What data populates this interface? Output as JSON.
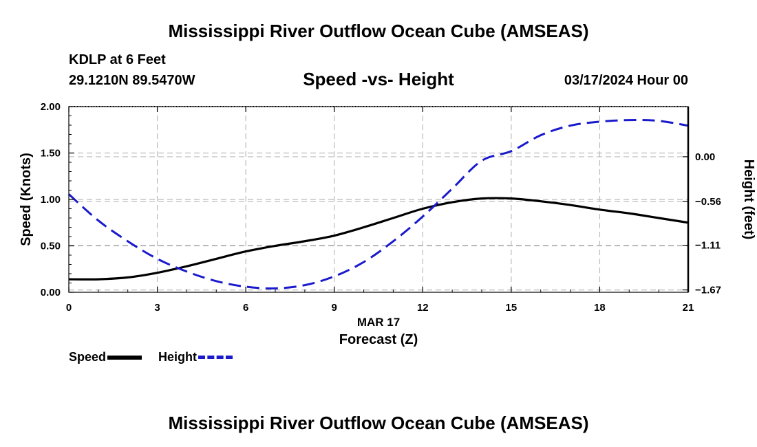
{
  "header": {
    "title": "Mississippi River Outflow Ocean Cube (AMSEAS)",
    "station": "KDLP at 6 Feet",
    "coords": "29.1210N  89.5470W",
    "subtitle": "Speed -vs- Height",
    "datetime": "03/17/2024 Hour 00"
  },
  "footer": {
    "title": "Mississippi River Outflow Ocean Cube (AMSEAS)"
  },
  "legend": {
    "speed_label": "Speed",
    "height_label": "Height"
  },
  "colors": {
    "speed": "#000000",
    "height": "#1a1acc",
    "grid": "#bbbbbb"
  },
  "chart_data": {
    "type": "line",
    "title": "Speed -vs- Height",
    "xlabel": "Forecast (Z)",
    "xlabel_date": "MAR 17",
    "ylabel": "Speed (Knots)",
    "y2label": "Height (feet)",
    "xlim": [
      0,
      21
    ],
    "ylim": [
      0,
      2
    ],
    "y2lim": [
      -1.6994,
      0.6288
    ],
    "x_ticks": [
      0,
      3,
      6,
      9,
      12,
      15,
      18,
      21
    ],
    "x_tick_labels": [
      "0",
      "3",
      "6",
      "9",
      "12",
      "15",
      "18",
      "21"
    ],
    "y_ticks": [
      0,
      0.5,
      1.0,
      1.5,
      2.0
    ],
    "y_tick_labels": [
      "0.00",
      "0.50",
      "1.00",
      "1.50",
      "2.00"
    ],
    "y2_ticks": [
      0.0,
      -0.56,
      -1.11,
      -1.67
    ],
    "y2_tick_labels": [
      "0.00",
      "−0.56",
      "−1.11",
      "−1.67"
    ],
    "grid": true,
    "series": [
      {
        "name": "Speed",
        "axis": "left",
        "style": "solid",
        "x": [
          0,
          1,
          2,
          3,
          4,
          5,
          6,
          7,
          8,
          9,
          10,
          11,
          12,
          13,
          14,
          15,
          16,
          17,
          18,
          19,
          20,
          21
        ],
        "values": [
          0.14,
          0.14,
          0.16,
          0.21,
          0.28,
          0.36,
          0.44,
          0.5,
          0.55,
          0.61,
          0.7,
          0.8,
          0.9,
          0.97,
          1.01,
          1.01,
          0.98,
          0.94,
          0.89,
          0.85,
          0.8,
          0.75
        ]
      },
      {
        "name": "Height",
        "axis": "right",
        "style": "dashed",
        "x": [
          0,
          1,
          2,
          3,
          4,
          5,
          6,
          7,
          8,
          9,
          10,
          11,
          12,
          13,
          14,
          15,
          16,
          17,
          18,
          19,
          20,
          21
        ],
        "values": [
          -0.47,
          -0.8,
          -1.06,
          -1.28,
          -1.44,
          -1.56,
          -1.63,
          -1.65,
          -1.61,
          -1.5,
          -1.32,
          -1.06,
          -0.75,
          -0.4,
          -0.05,
          0.07,
          0.27,
          0.39,
          0.44,
          0.46,
          0.45,
          0.39
        ]
      }
    ]
  }
}
